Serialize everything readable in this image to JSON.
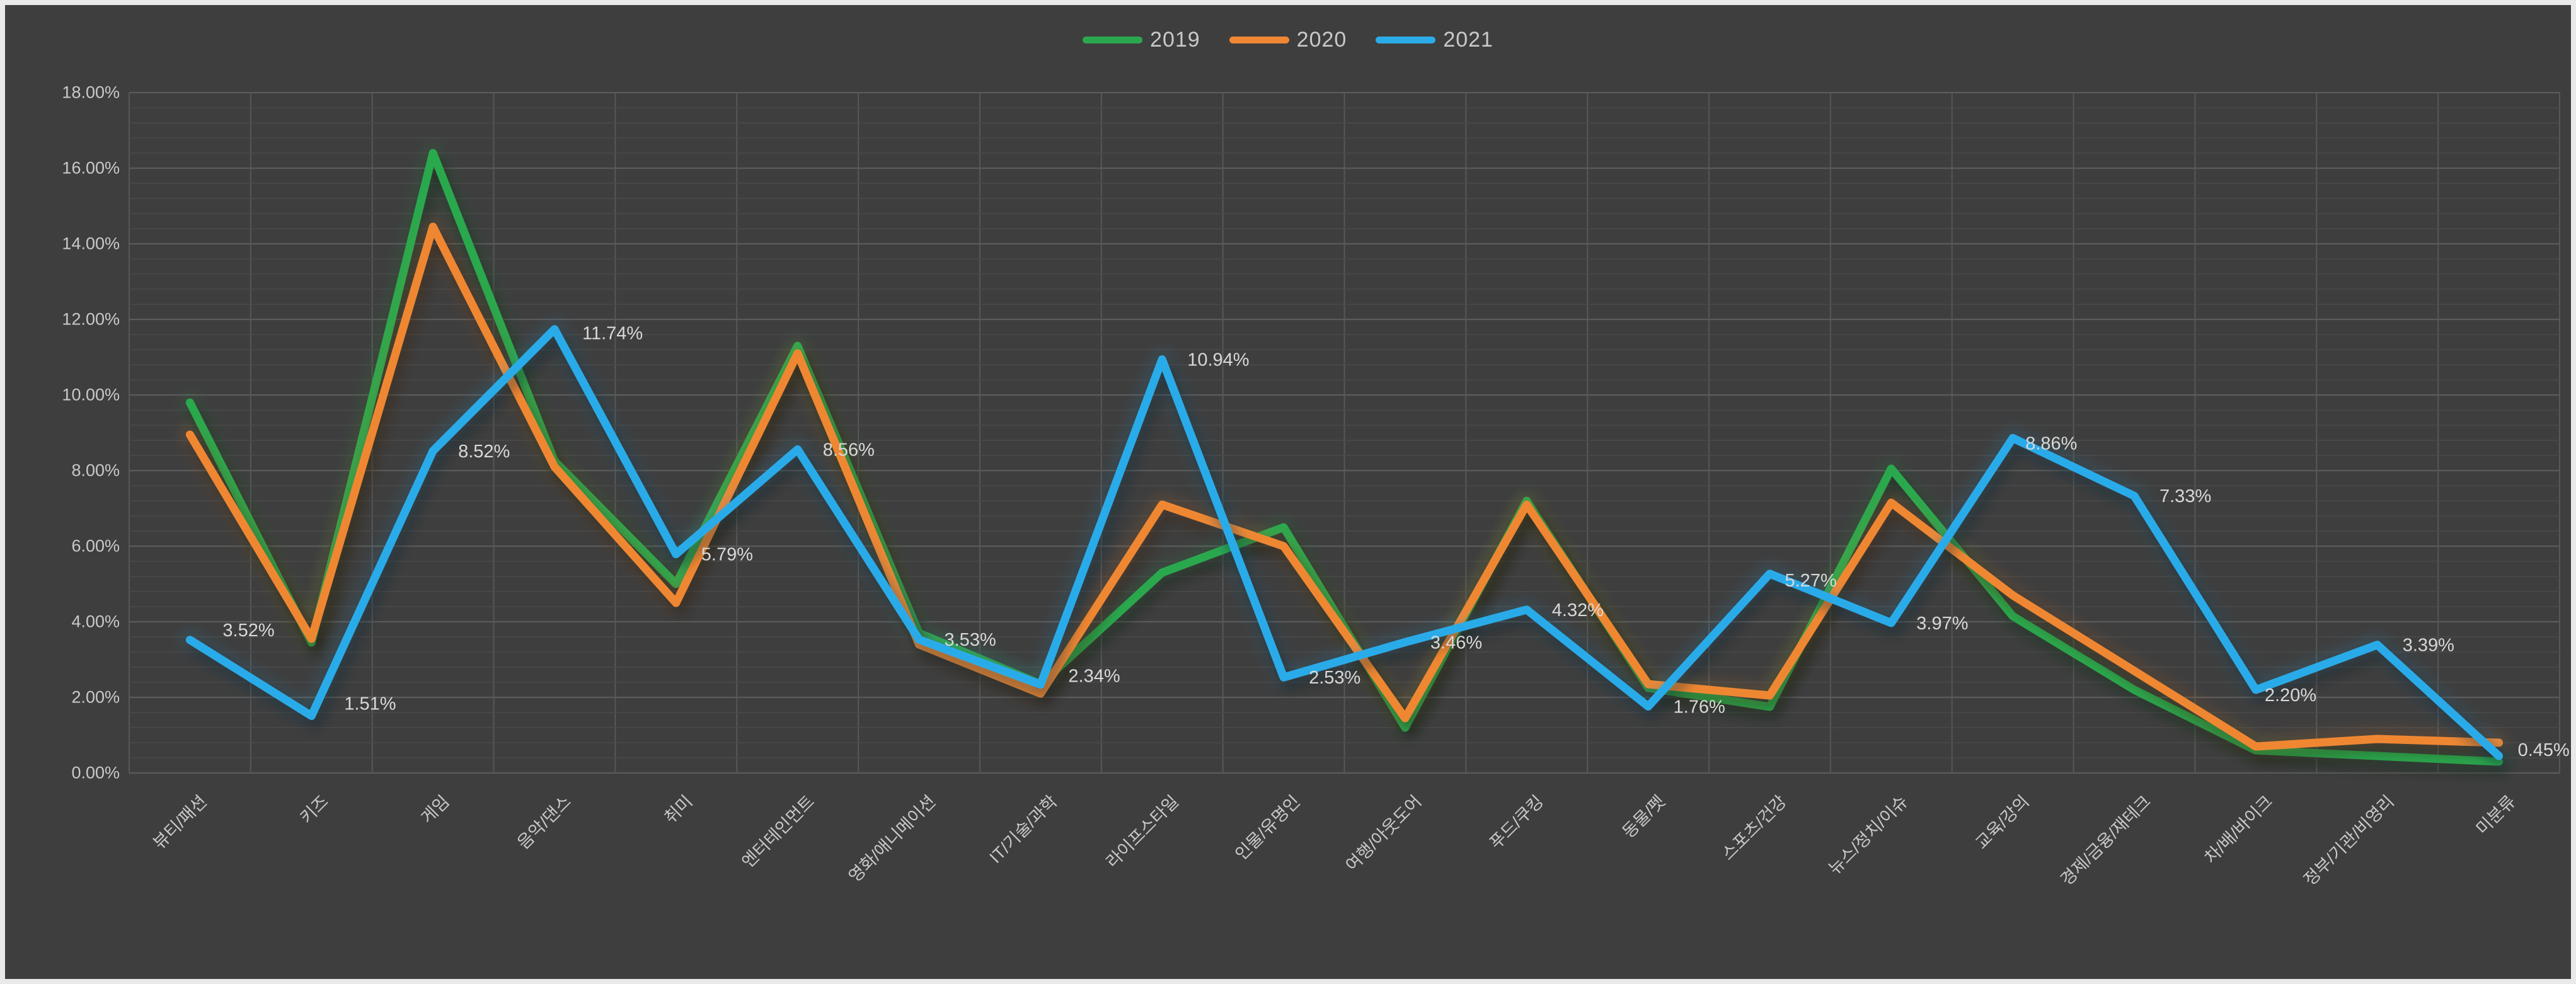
{
  "chart_data": {
    "type": "line",
    "title": "",
    "xlabel": "",
    "ylabel": "",
    "categories": [
      "뷰티/패션",
      "키즈",
      "게임",
      "음악/댄스",
      "취미",
      "엔터테인먼트",
      "영화/애니메이션",
      "IT/기술/과학",
      "라이프스타일",
      "인물/유명인",
      "여행/아웃도어",
      "푸드/쿠킹",
      "동물/펫",
      "스포츠/건강",
      "뉴스/정치/이슈",
      "교육/강의",
      "경제/금융/재테크",
      "차/배/바이크",
      "정부/기관/비영리",
      "미분류"
    ],
    "series": [
      {
        "name": "2019",
        "color": "#2ba84e",
        "values": [
          9.8,
          3.45,
          16.4,
          8.25,
          5.0,
          11.3,
          3.7,
          2.35,
          5.3,
          6.5,
          1.2,
          7.2,
          2.25,
          1.75,
          8.05,
          4.15,
          2.2,
          0.6,
          0.45,
          0.3
        ]
      },
      {
        "name": "2020",
        "color": "#ef8733",
        "values": [
          8.95,
          3.55,
          14.45,
          8.1,
          4.5,
          11.1,
          3.4,
          2.1,
          7.1,
          6.0,
          1.45,
          7.1,
          2.35,
          2.05,
          7.15,
          4.7,
          2.7,
          0.7,
          0.9,
          0.8
        ]
      },
      {
        "name": "2021",
        "color": "#2cabe9",
        "values": [
          3.52,
          1.51,
          8.52,
          11.74,
          5.79,
          8.56,
          3.53,
          2.34,
          10.94,
          2.53,
          3.46,
          4.32,
          1.76,
          5.27,
          3.97,
          8.86,
          7.33,
          2.2,
          3.39,
          0.45
        ],
        "data_labels": [
          "3.52%",
          "1.51%",
          "8.52%",
          "11.74%",
          "5.79%",
          "8.56%",
          "3.53%",
          "2.34%",
          "10.94%",
          "2.53%",
          "3.46%",
          "4.32%",
          "1.76%",
          "5.27%",
          "3.97%",
          "8.86%",
          "7.33%",
          "2.20%",
          "3.39%",
          "0.45%"
        ]
      }
    ],
    "labeled_series": "2021",
    "ylim": [
      0,
      18
    ],
    "y_ticks": [
      "0.00%",
      "2.00%",
      "4.00%",
      "6.00%",
      "8.00%",
      "10.00%",
      "12.00%",
      "14.00%",
      "16.00%",
      "18.00%"
    ],
    "y_major_step": 2,
    "y_minor_step": 0.4,
    "grid": true,
    "legend_position": "top-center"
  },
  "legend": {
    "items": [
      {
        "label": "2019",
        "color": "#2ba84e"
      },
      {
        "label": "2020",
        "color": "#ef8733"
      },
      {
        "label": "2021",
        "color": "#2cabe9"
      }
    ]
  },
  "colors": {
    "page_border": "#e9e9e9",
    "background": "#3e3e3e",
    "grid_major": "#5b5b5b",
    "grid_minor": "#4a4a4a",
    "grid_vertical": "#575757",
    "axis_text": "#c9c9c9",
    "data_label_text": "#d8d8d8",
    "legend_text": "#c9c9c9"
  }
}
